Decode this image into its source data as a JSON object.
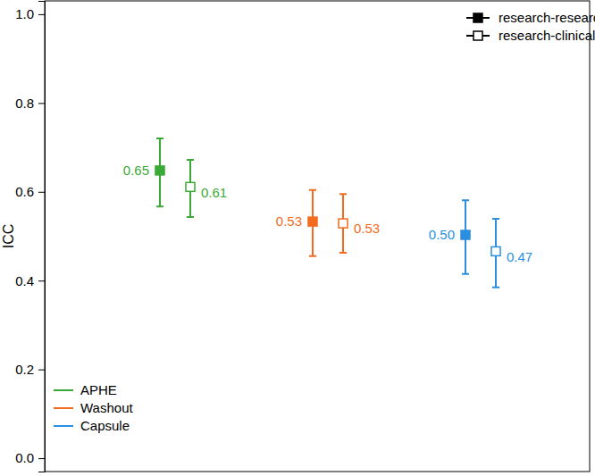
{
  "chart_data": {
    "type": "scatter",
    "y_label": "ICC",
    "categories": [
      "APHE",
      "Washout",
      "Capsule"
    ],
    "colors": [
      "#3aa935",
      "#f26b1f",
      "#2a8fe0"
    ],
    "ylim": [
      -0.03,
      1.03
    ],
    "yticks": [
      {
        "value": 0,
        "label": "0.0"
      },
      {
        "value": 0.2,
        "label": "0.2"
      },
      {
        "value": 0.4,
        "label": "0.4"
      },
      {
        "value": 0.6,
        "label": "0.6"
      },
      {
        "value": 0.8,
        "label": "0.8"
      },
      {
        "value": 1,
        "label": "1.0"
      }
    ],
    "grid": false,
    "legend": "top-right",
    "tick_labels": "y",
    "data_labels": true,
    "series": [
      {
        "name": "research-research",
        "color": "#000000",
        "marker": "filled-square",
        "values": [
          0.648,
          0.533,
          0.503
        ],
        "value_labels": [
          "0.65",
          "0.53",
          "0.50"
        ],
        "lower": [
          0.567,
          0.455,
          0.415
        ],
        "upper": [
          0.72,
          0.604,
          0.581
        ]
      },
      {
        "name": "research-clinical",
        "color": "#000000",
        "marker": "open-square",
        "values": [
          0.611,
          0.529,
          0.466
        ],
        "value_labels": [
          "0.61",
          "0.53",
          "0.47"
        ],
        "lower": [
          0.543,
          0.463,
          0.385
        ],
        "upper": [
          0.672,
          0.595,
          0.539
        ]
      }
    ]
  }
}
